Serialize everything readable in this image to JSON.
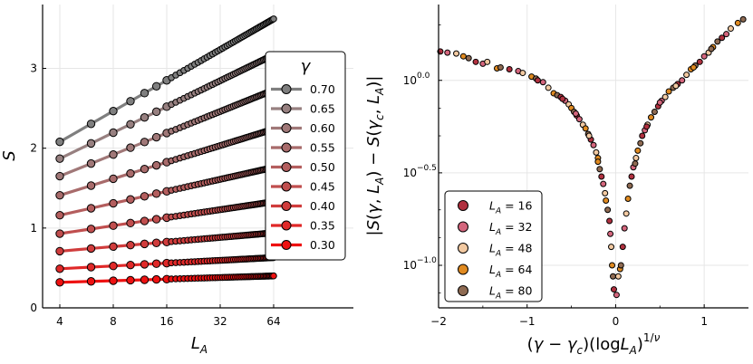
{
  "chart_data": [
    {
      "type": "line",
      "xscale": "log2",
      "xlim": [
        3.2,
        180
      ],
      "ylim": [
        0,
        3.8
      ],
      "xticks": [
        4,
        8,
        16,
        32,
        64
      ],
      "xtick_labels": [
        "4",
        "8",
        "16",
        "32",
        "64"
      ],
      "yticks": [
        0,
        1,
        2,
        3
      ],
      "ytick_labels": [
        "0",
        "1",
        "2",
        "3"
      ],
      "xlabel_main": "L",
      "xlabel_sub": "A",
      "ylabel": "S",
      "legend_title": "γ",
      "legend_position": "right",
      "x_start": 4,
      "x_end": 64,
      "series": [
        {
          "name": "0.70",
          "gamma": 0.7,
          "color": "#7f7f7f",
          "s4": 2.08,
          "s64": 3.62
        },
        {
          "name": "0.65",
          "gamma": 0.65,
          "color": "#978080",
          "s4": 1.87,
          "s64": 3.17
        },
        {
          "name": "0.60",
          "gamma": 0.6,
          "color": "#a07878",
          "s4": 1.65,
          "s64": 2.73
        },
        {
          "name": "0.55",
          "gamma": 0.55,
          "color": "#a86b6b",
          "s4": 1.41,
          "s64": 2.24
        },
        {
          "name": "0.50",
          "gamma": 0.5,
          "color": "#b45e5e",
          "s4": 1.16,
          "s64": 1.76
        },
        {
          "name": "0.45",
          "gamma": 0.45,
          "color": "#c04e4e",
          "s4": 0.93,
          "s64": 1.33
        },
        {
          "name": "0.40",
          "gamma": 0.4,
          "color": "#d03c3c",
          "s4": 0.71,
          "s64": 0.94
        },
        {
          "name": "0.35",
          "gamma": 0.35,
          "color": "#e02828",
          "s4": 0.49,
          "s64": 0.63
        },
        {
          "name": "0.30",
          "gamma": 0.3,
          "color": "#ee1111",
          "s4": 0.32,
          "s64": 0.4
        }
      ]
    },
    {
      "type": "scatter",
      "yscale": "log10",
      "xlim": [
        -2,
        1.5
      ],
      "ylim_log10": [
        -1.23,
        0.41
      ],
      "xticks": [
        -2,
        -1,
        0,
        1
      ],
      "xtick_labels": [
        "−2",
        "−1",
        "0",
        "1"
      ],
      "yticks_log10": [
        0,
        -0.5,
        -1
      ],
      "ytick_base": "10",
      "ytick_exps": [
        "0.0",
        "−0.5",
        "−1.0"
      ],
      "xlabel": "(γ − γc)(logLA)1/ν",
      "ylabel": "|S(γ, LA) − S(γc, LA)|",
      "legend_position": "bottom-left",
      "series": [
        {
          "name_main": "L",
          "name_sub": "A",
          "name_value": " = 16",
          "color": "#b0303f"
        },
        {
          "name_main": "L",
          "name_sub": "A",
          "name_value": " = 32",
          "color": "#d4667d"
        },
        {
          "name_main": "L",
          "name_sub": "A",
          "name_value": " = 48",
          "color": "#f2c9a1"
        },
        {
          "name_main": "L",
          "name_sub": "A",
          "name_value": " = 64",
          "color": "#e08a20"
        },
        {
          "name_main": "L",
          "name_sub": "A",
          "name_value": " = 80",
          "color": "#8e6a52"
        }
      ],
      "points": [
        [
          -1.98,
          0.156
        ],
        [
          -1.9,
          0.15
        ],
        [
          -1.8,
          0.145
        ],
        [
          -1.72,
          0.13
        ],
        [
          -1.66,
          0.12
        ],
        [
          -1.58,
          0.1
        ],
        [
          -1.5,
          0.09
        ],
        [
          -1.45,
          0.1
        ],
        [
          -1.34,
          0.065
        ],
        [
          -1.3,
          0.07
        ],
        [
          -1.2,
          0.06
        ],
        [
          -1.1,
          0.05
        ],
        [
          -1.05,
          0.04
        ],
        [
          -0.95,
          0.02
        ],
        [
          -0.9,
          0.01
        ],
        [
          -0.88,
          0.0
        ],
        [
          -0.82,
          -0.01
        ],
        [
          -0.76,
          -0.04
        ],
        [
          -0.7,
          -0.07
        ],
        [
          -0.66,
          -0.08
        ],
        [
          -0.62,
          -0.09
        ],
        [
          -0.57,
          -0.11
        ],
        [
          -0.53,
          -0.13
        ],
        [
          -0.5,
          -0.15
        ],
        [
          -0.47,
          -0.17
        ],
        [
          -0.44,
          -0.19
        ],
        [
          -0.41,
          -0.21
        ],
        [
          -0.37,
          -0.24
        ],
        [
          -0.34,
          -0.26
        ],
        [
          -0.31,
          -0.29
        ],
        [
          -0.28,
          -0.32
        ],
        [
          -0.25,
          -0.35
        ],
        [
          -0.22,
          -0.39
        ],
        [
          -0.2,
          -0.42
        ],
        [
          -0.18,
          -0.48
        ],
        [
          -0.16,
          -0.52
        ],
        [
          -0.14,
          -0.56
        ],
        [
          -0.12,
          -0.61
        ],
        [
          -0.11,
          -0.65
        ],
        [
          -0.09,
          -0.7
        ],
        [
          -0.07,
          -0.76
        ],
        [
          -0.06,
          -0.83
        ],
        [
          -0.05,
          -0.9
        ],
        [
          -0.04,
          -1.0
        ],
        [
          -0.03,
          -1.06
        ],
        [
          -0.02,
          -1.13
        ],
        [
          0.01,
          -1.16
        ],
        [
          0.03,
          -1.06
        ],
        [
          0.05,
          -1.02
        ],
        [
          0.06,
          -1.0
        ],
        [
          0.08,
          -0.9
        ],
        [
          0.1,
          -0.8
        ],
        [
          0.12,
          -0.72
        ],
        [
          0.14,
          -0.64
        ],
        [
          0.16,
          -0.57
        ],
        [
          0.18,
          -0.52
        ],
        [
          0.2,
          -0.47
        ],
        [
          0.23,
          -0.42
        ],
        [
          0.25,
          -0.38
        ],
        [
          0.28,
          -0.34
        ],
        [
          0.3,
          -0.3
        ],
        [
          0.33,
          -0.27
        ],
        [
          0.36,
          -0.24
        ],
        [
          0.4,
          -0.2
        ],
        [
          0.44,
          -0.17
        ],
        [
          0.48,
          -0.14
        ],
        [
          0.52,
          -0.11
        ],
        [
          0.56,
          -0.09
        ],
        [
          0.6,
          -0.06
        ],
        [
          0.65,
          -0.04
        ],
        [
          0.7,
          -0.02
        ],
        [
          0.75,
          0.0
        ],
        [
          0.8,
          0.03
        ],
        [
          0.85,
          0.06
        ],
        [
          0.9,
          0.08
        ],
        [
          0.95,
          0.1
        ],
        [
          1.0,
          0.13
        ],
        [
          1.05,
          0.15
        ],
        [
          1.1,
          0.18
        ],
        [
          1.15,
          0.21
        ],
        [
          1.2,
          0.23
        ],
        [
          1.25,
          0.25
        ],
        [
          1.3,
          0.28
        ],
        [
          1.38,
          0.31
        ],
        [
          1.44,
          0.33
        ],
        [
          -0.6,
          -0.1
        ],
        [
          -0.45,
          -0.18
        ],
        [
          -0.3,
          -0.3
        ],
        [
          -0.2,
          -0.44
        ],
        [
          0.22,
          -0.45
        ],
        [
          0.35,
          -0.25
        ],
        [
          0.5,
          -0.12
        ],
        [
          0.68,
          -0.03
        ],
        [
          0.88,
          0.07
        ],
        [
          1.08,
          0.17
        ]
      ]
    }
  ]
}
